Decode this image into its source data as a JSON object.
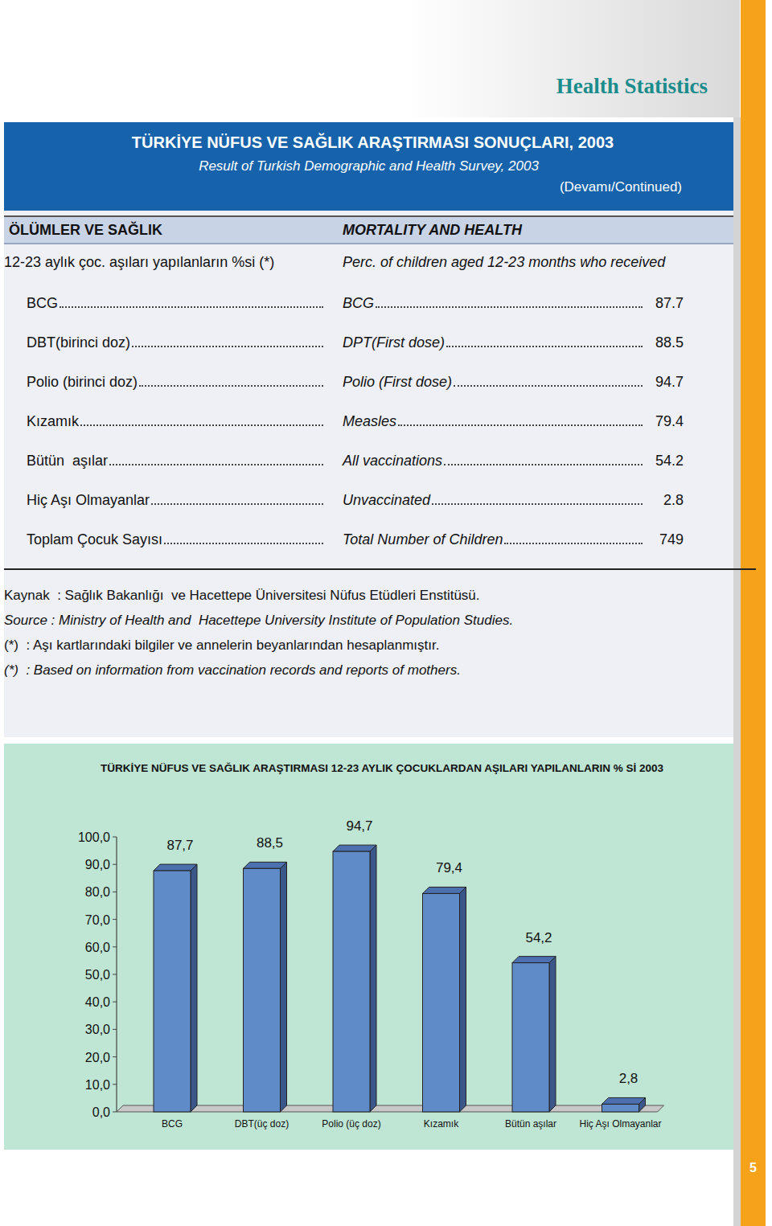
{
  "header": {
    "section_title": "Health Statistics",
    "title": "TÜRKİYE NÜFUS VE SAĞLIK ARAŞTIRMASI SONUÇLARI, 2003",
    "subtitle": "Result of Turkish Demographic and Health Survey, 2003",
    "continued": "(Devamı/Continued)"
  },
  "table": {
    "heading_tr": "ÖLÜMLER VE SAĞLIK",
    "heading_en": "MORTALITY AND HEALTH",
    "intro_tr": "12-23 aylık çoc. aşıları yapılanların %si (*)",
    "intro_en": "Perc. of children aged 12-23 months who received",
    "rows": [
      {
        "label_tr": "BCG",
        "label_en": "BCG",
        "value": 87.7
      },
      {
        "label_tr": "DBT(birinci doz)",
        "label_en": "DPT(First dose)",
        "value": 88.5
      },
      {
        "label_tr": "Polio (birinci doz)",
        "label_en": "Polio (First dose)",
        "value": 94.7
      },
      {
        "label_tr": "Kızamık",
        "label_en": "Measles",
        "value": 79.4
      },
      {
        "label_tr": "Bütün  aşılar",
        "label_en": "All vaccinations",
        "value": 54.2
      },
      {
        "label_tr": "Hiç Aşı Olmayanlar",
        "label_en": "Unvaccinated",
        "value": 2.8
      },
      {
        "label_tr": "Toplam Çocuk Sayısı",
        "label_en": "Total Number of Children",
        "value": 749
      }
    ]
  },
  "notes": [
    "Kaynak  : Sağlık Bakanlığı  ve Hacettepe Üniversitesi Nüfus Etüdleri Enstitüsü.",
    "Source : Ministry of Health and  Hacettepe University Institute of Population Studies.",
    "(*)  : Aşı kartlarındaki bilgiler ve annelerin beyanlarından hesaplanmıştır.",
    "(*)  : Based on information from vaccination records and reports of mothers."
  ],
  "page_number": 5,
  "chart_data": {
    "type": "bar",
    "title": "TÜRKİYE  NÜFUS VE SAĞLIK ARAŞTIRMASI 12-23 AYLIK ÇOCUKLARDAN AŞILARI YAPILANLARIN % Sİ 2003",
    "categories": [
      "BCG",
      "DBT(üç doz)",
      "Polio (üç doz)",
      "Kızamık",
      "Bütün  aşılar",
      "Hiç Aşı Olmayanlar"
    ],
    "values": [
      87.7,
      88.5,
      94.7,
      79.4,
      54.2,
      2.8
    ],
    "value_labels": [
      "87,7",
      "88,5",
      "94,7",
      "79,4",
      "54,2",
      "2,8"
    ],
    "data_labels": true,
    "color": "#5f8bc8",
    "grid": false,
    "ylim": [
      0,
      100
    ],
    "yticks": [
      {
        "value": 0,
        "label": "0,0"
      },
      {
        "value": 10,
        "label": "10,0"
      },
      {
        "value": 20,
        "label": "20,0"
      },
      {
        "value": 30,
        "label": "30,0"
      },
      {
        "value": 40,
        "label": "40,0"
      },
      {
        "value": 50,
        "label": "50,0"
      },
      {
        "value": 60,
        "label": "60,0"
      },
      {
        "value": 70,
        "label": "70,0"
      },
      {
        "value": 80,
        "label": "80,0"
      },
      {
        "value": 90,
        "label": "90,0"
      },
      {
        "value": 100,
        "label": "100,0"
      }
    ]
  }
}
